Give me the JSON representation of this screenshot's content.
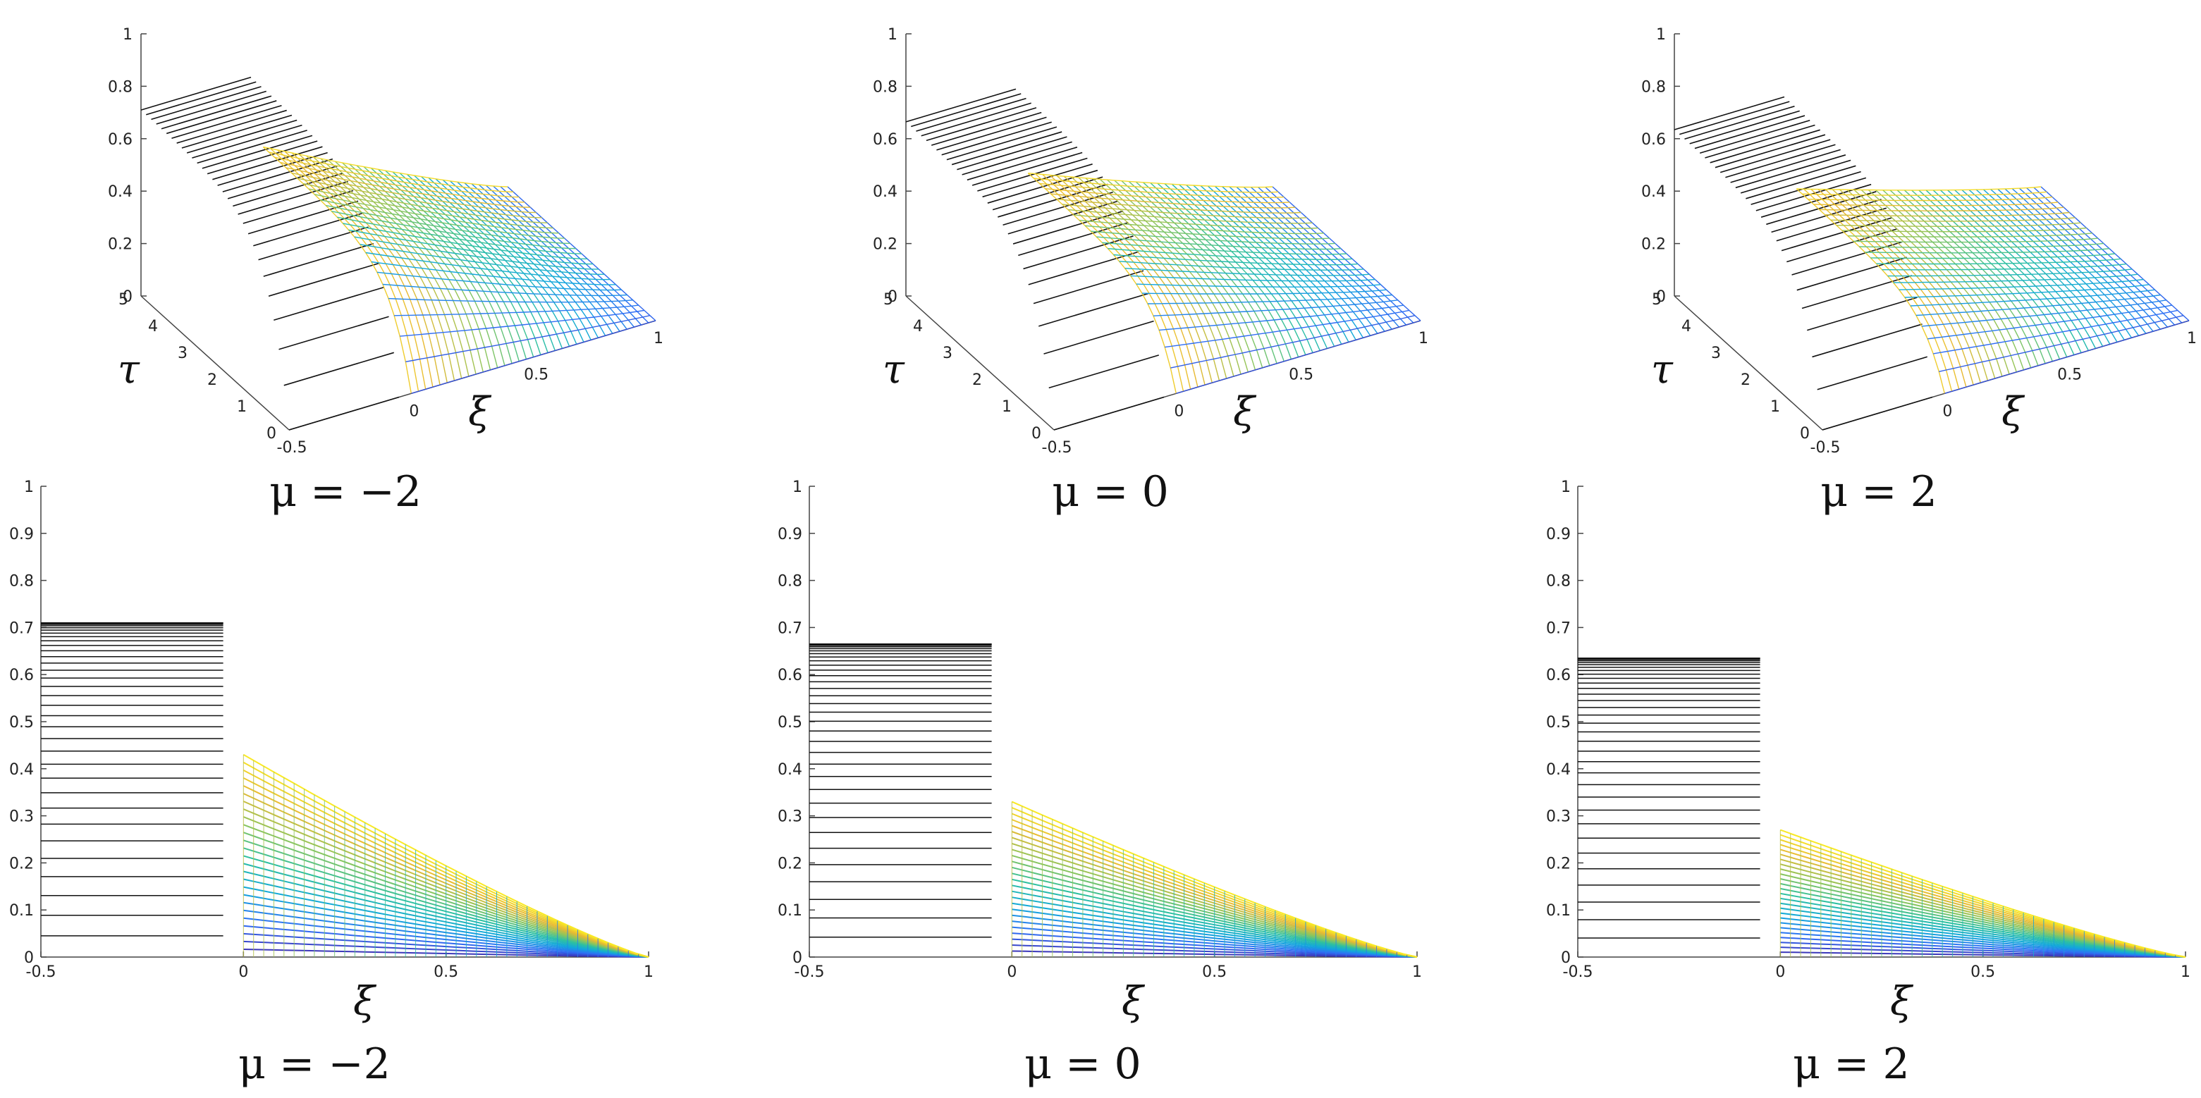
{
  "chart_data": [
    {
      "type": "surface",
      "panel": "top-left",
      "mu": -2,
      "caption": "μ = −2",
      "xlabel": "τ",
      "ylabel": "ξ",
      "tau_range": [
        0,
        5
      ],
      "xi_range": [
        -0.5,
        1
      ],
      "zlim": [
        0,
        1
      ],
      "tau_ticks": [
        "0",
        "1",
        "2",
        "3",
        "4",
        "5"
      ],
      "xi_ticks": [
        "-0.5",
        "0",
        "0.5",
        "1"
      ],
      "z_ticks": [
        "0",
        "0.2",
        "0.4",
        "0.6",
        "0.8",
        "1"
      ],
      "plateau_level": 0.71,
      "peak_at_xi0": 0.43
    },
    {
      "type": "surface",
      "panel": "top-middle",
      "mu": 0,
      "caption": "μ = 0",
      "xlabel": "τ",
      "ylabel": "ξ",
      "tau_range": [
        0,
        5
      ],
      "xi_range": [
        -0.5,
        1
      ],
      "zlim": [
        0,
        1
      ],
      "tau_ticks": [
        "0",
        "1",
        "2",
        "3",
        "4",
        "5"
      ],
      "xi_ticks": [
        "-0.5",
        "0",
        "0.5",
        "1"
      ],
      "z_ticks": [
        "0",
        "0.2",
        "0.4",
        "0.6",
        "0.8",
        "1"
      ],
      "plateau_level": 0.665,
      "peak_at_xi0": 0.33
    },
    {
      "type": "surface",
      "panel": "top-right",
      "mu": 2,
      "caption": "μ = 2",
      "xlabel": "τ",
      "ylabel": "ξ",
      "tau_range": [
        0,
        5
      ],
      "xi_range": [
        -0.5,
        1
      ],
      "zlim": [
        0,
        1
      ],
      "tau_ticks": [
        "0",
        "1",
        "2",
        "3",
        "4",
        "5"
      ],
      "xi_ticks": [
        "-0.5",
        "0",
        "0.5",
        "1"
      ],
      "z_ticks": [
        "0",
        "0.2",
        "0.4",
        "0.6",
        "0.8",
        "1"
      ],
      "plateau_level": 0.635,
      "peak_at_xi0": 0.27
    },
    {
      "type": "line",
      "panel": "bottom-left",
      "mu": -2,
      "caption": "μ = −2",
      "xlabel": "ξ",
      "xlim": [
        -0.5,
        1
      ],
      "ylim": [
        0,
        1
      ],
      "x_ticks": [
        "-0.5",
        "0",
        "0.5",
        "1"
      ],
      "y_ticks": [
        "0",
        "0.1",
        "0.2",
        "0.3",
        "0.4",
        "0.5",
        "0.6",
        "0.7",
        "0.8",
        "0.9",
        "1"
      ],
      "plateau_level": 0.71,
      "plateau_xi_end": -0.05,
      "peak_at_xi0": 0.43
    },
    {
      "type": "line",
      "panel": "bottom-middle",
      "mu": 0,
      "caption": "μ = 0",
      "xlabel": "ξ",
      "xlim": [
        -0.5,
        1
      ],
      "ylim": [
        0,
        1
      ],
      "x_ticks": [
        "-0.5",
        "0",
        "0.5",
        "1"
      ],
      "y_ticks": [
        "0",
        "0.1",
        "0.2",
        "0.3",
        "0.4",
        "0.5",
        "0.6",
        "0.7",
        "0.8",
        "0.9",
        "1"
      ],
      "plateau_level": 0.665,
      "plateau_xi_end": -0.05,
      "peak_at_xi0": 0.33
    },
    {
      "type": "line",
      "panel": "bottom-right",
      "mu": 2,
      "caption": "μ = 2",
      "xlabel": "ξ",
      "xlim": [
        -0.5,
        1
      ],
      "ylim": [
        0,
        1
      ],
      "x_ticks": [
        "-0.5",
        "0",
        "0.5",
        "1"
      ],
      "y_ticks": [
        "0",
        "0.1",
        "0.2",
        "0.3",
        "0.4",
        "0.5",
        "0.6",
        "0.7",
        "0.8",
        "0.9",
        "1"
      ],
      "plateau_level": 0.635,
      "plateau_xi_end": -0.05,
      "peak_at_xi0": 0.27
    }
  ],
  "colormap": [
    "#3e26a8",
    "#2f6ef5",
    "#12a8db",
    "#2dc0a0",
    "#8fc55a",
    "#e8b932",
    "#f9e925"
  ]
}
